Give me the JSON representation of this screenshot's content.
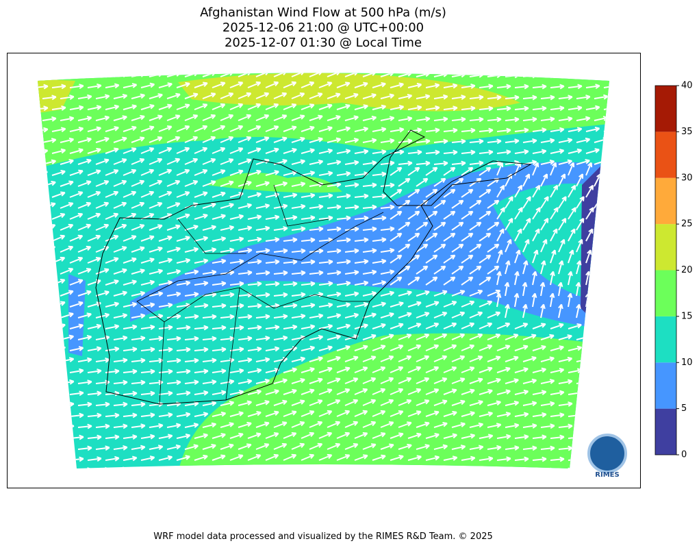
{
  "header": {
    "title": [
      "Afghanistan Wind Flow at 500 hPa (m/s)",
      "2025-12-06 21:00 @ UTC+00:00",
      "2025-12-07 01:30 @ Local Time"
    ]
  },
  "colorbar": {
    "levels": [
      0,
      5,
      10,
      15,
      20,
      25,
      30,
      35,
      40
    ],
    "colors": [
      "#3f3fa0",
      "#4696ff",
      "#1ddfc2",
      "#6cff5a",
      "#cde830",
      "#ffaa3a",
      "#ea5215",
      "#a51a05"
    ]
  },
  "logo": "RIMES",
  "footer": "WRF model data processed and visualized by the RIMES R&D Team. © 2025"
}
